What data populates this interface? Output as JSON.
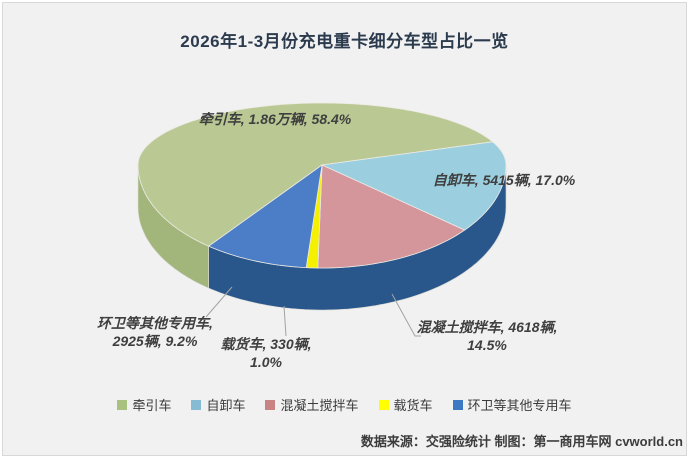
{
  "title": "2026年1-3月份充电重卡细分车型占比一览",
  "source": "数据来源：交强险统计 制图：第一商用车网 cvworld.cn",
  "chart_data": {
    "type": "pie",
    "style": "3d",
    "title": "2026年1-3月份充电重卡细分车型占比一览",
    "unit": "辆",
    "start_angle_deg": 218,
    "legend_position": "bottom",
    "background_color": "#f1f1f2",
    "slices": [
      {
        "name": "牵引车",
        "value": 18600,
        "value_label": "1.86万辆",
        "percent": 58.4,
        "label_line1": "牵引车, 1.86万辆, 58.4%",
        "color": "#bac993",
        "side_color": "#a2b67c",
        "legend_color": "#a8c17e"
      },
      {
        "name": "自卸车",
        "value": 5415,
        "value_label": "5415辆",
        "percent": 17.0,
        "label_line1": "自卸车, 5415辆, 17.0%",
        "color": "#9bcfdf",
        "side_color": "#315f6a",
        "legend_color": "#85bcd4"
      },
      {
        "name": "混凝土搅拌车",
        "value": 4618,
        "value_label": "4618辆",
        "percent": 14.5,
        "label_line1": "混凝土搅拌车, 4618辆,",
        "label_line2": "14.5%",
        "color": "#d4959b",
        "side_color": "#724649",
        "legend_color": "#c98383"
      },
      {
        "name": "载货车",
        "value": 330,
        "value_label": "330辆",
        "percent": 1.0,
        "label_line1": "载货车, 330辆,",
        "label_line2": "1.0%",
        "color": "#f5f000",
        "side_color": "#b0ab00",
        "legend_color": "#ffff00"
      },
      {
        "name": "环卫等其他专用车",
        "value": 2925,
        "value_label": "2925辆",
        "percent": 9.2,
        "label_line1": "环卫等其他专用车,",
        "label_line2": "2925辆, 9.2%",
        "color": "#4b7ec6",
        "side_color": "#29578c",
        "legend_color": "#3c79c2"
      }
    ]
  }
}
